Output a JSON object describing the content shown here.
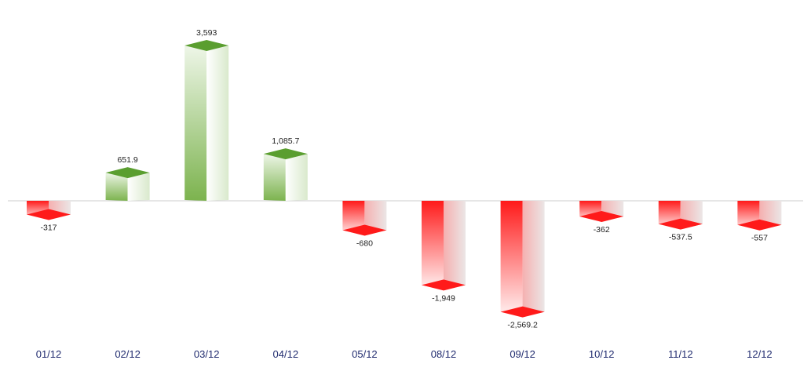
{
  "chart_data": {
    "type": "bar",
    "style": "3d-column",
    "categories": [
      "01/12",
      "02/12",
      "03/12",
      "04/12",
      "05/12",
      "08/12",
      "09/12",
      "10/12",
      "11/12",
      "12/12"
    ],
    "values": [
      -317,
      651.9,
      3593,
      1085.7,
      -680,
      -1949,
      -2569.2,
      -362,
      -537.5,
      -557
    ],
    "value_labels": [
      "-317",
      "651.9",
      "3,593",
      "1,085.7",
      "-680",
      "-1,949",
      "-2,569.2",
      "-362",
      "-537.5",
      "-557"
    ],
    "ylim": [
      -2650,
      4250
    ],
    "grid": false,
    "legend": "none",
    "colors": {
      "positive": "#5a9e2f",
      "positive_light": "#eef6e8",
      "negative": "#ff1a1a",
      "negative_light": "#ebe6e6",
      "baseline": "#cccccc",
      "tick_label": "#1f2a6e",
      "data_label": "#222222"
    }
  }
}
